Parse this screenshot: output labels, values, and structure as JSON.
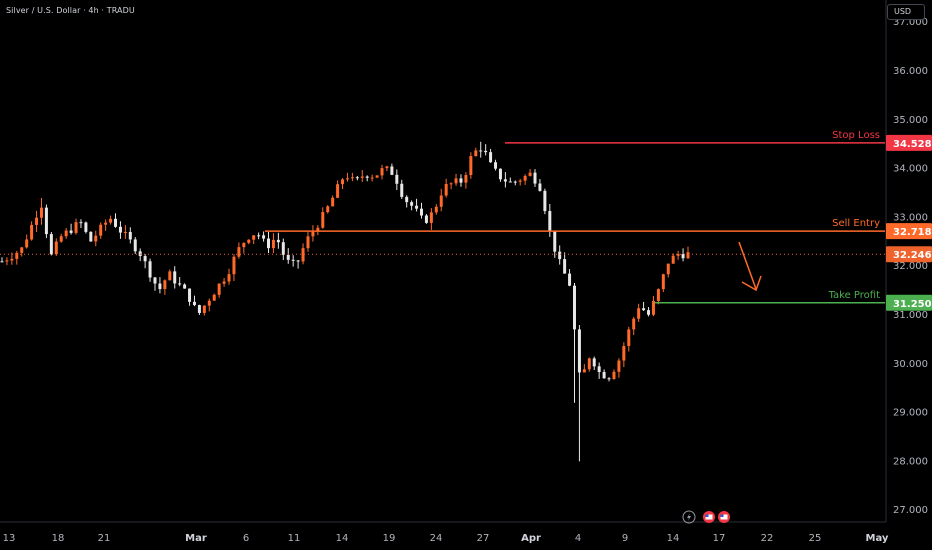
{
  "header": {
    "symbol_title": "Silver / U.S. Dollar · 4h · TRADU",
    "currency": "USD"
  },
  "chart_data": {
    "type": "candlestick",
    "title": "Silver / U.S. Dollar · 4h · TRADU",
    "ylim": [
      26.6,
      37.1
    ],
    "y_ticks": [
      "27.000",
      "28.000",
      "29.000",
      "30.000",
      "31.000",
      "32.000",
      "33.000",
      "34.000",
      "35.000",
      "36.000",
      "37.000"
    ],
    "x_ticks": [
      "13",
      "18",
      "21",
      "Mar",
      "6",
      "11",
      "14",
      "19",
      "24",
      "27",
      "Apr",
      "4",
      "9",
      "14",
      "17",
      "22",
      "25",
      "May"
    ],
    "grid": false,
    "levels": [
      {
        "label": "Stop Loss",
        "value": 34.528,
        "price_label": "34.528",
        "color": "#f23645"
      },
      {
        "label": "Sell Entry",
        "value": 32.718,
        "price_label": "32.718",
        "color": "#ff6a2a"
      },
      {
        "label": "Take Profit",
        "value": 31.25,
        "price_label": "31.250",
        "color": "#4caf50"
      }
    ],
    "last_price": {
      "value": 32.246,
      "label": "32.246",
      "color": "#f0622c"
    },
    "price_path": [
      {
        "x": 0,
        "y": 32.1
      },
      {
        "x": 2,
        "y": 32.35
      },
      {
        "x": 4,
        "y": 33.3
      },
      {
        "x": 5,
        "y": 32.2
      },
      {
        "x": 6,
        "y": 32.6
      },
      {
        "x": 8,
        "y": 32.9
      },
      {
        "x": 9,
        "y": 32.5
      },
      {
        "x": 11,
        "y": 33.0
      },
      {
        "x": 12,
        "y": 32.75
      },
      {
        "x": 14,
        "y": 32.3
      },
      {
        "x": 16,
        "y": 31.5
      },
      {
        "x": 17,
        "y": 31.85
      },
      {
        "x": 19,
        "y": 31.4
      },
      {
        "x": 20,
        "y": 31.0
      },
      {
        "x": 21,
        "y": 31.3
      },
      {
        "x": 23,
        "y": 31.85
      },
      {
        "x": 24,
        "y": 32.3
      },
      {
        "x": 25,
        "y": 32.6
      },
      {
        "x": 26,
        "y": 32.7
      },
      {
        "x": 27,
        "y": 32.4
      },
      {
        "x": 28,
        "y": 32.6
      },
      {
        "x": 29,
        "y": 32.1
      },
      {
        "x": 30,
        "y": 32.0
      },
      {
        "x": 31,
        "y": 32.5
      },
      {
        "x": 32,
        "y": 32.8
      },
      {
        "x": 33,
        "y": 33.1
      },
      {
        "x": 34,
        "y": 33.5
      },
      {
        "x": 35,
        "y": 33.9
      },
      {
        "x": 36,
        "y": 33.7
      },
      {
        "x": 37,
        "y": 33.9
      },
      {
        "x": 38,
        "y": 33.85
      },
      {
        "x": 39,
        "y": 34.0
      },
      {
        "x": 40,
        "y": 33.9
      },
      {
        "x": 41,
        "y": 33.4
      },
      {
        "x": 42,
        "y": 33.2
      },
      {
        "x": 43,
        "y": 32.9
      },
      {
        "x": 44,
        "y": 33.1
      },
      {
        "x": 45,
        "y": 33.6
      },
      {
        "x": 46,
        "y": 33.7
      },
      {
        "x": 47,
        "y": 33.75
      },
      {
        "x": 48,
        "y": 34.3
      },
      {
        "x": 49,
        "y": 34.45
      },
      {
        "x": 50,
        "y": 34.0
      },
      {
        "x": 51,
        "y": 33.8
      },
      {
        "x": 52,
        "y": 33.7
      },
      {
        "x": 53,
        "y": 33.8
      },
      {
        "x": 54,
        "y": 33.9
      },
      {
        "x": 55,
        "y": 33.6
      },
      {
        "x": 56,
        "y": 32.6
      },
      {
        "x": 57,
        "y": 32.0
      },
      {
        "x": 58,
        "y": 31.6
      },
      {
        "x": 58.5,
        "y": 30.5
      },
      {
        "x": 59,
        "y": 29.6
      },
      {
        "x": 60,
        "y": 30.2
      },
      {
        "x": 61,
        "y": 29.8
      },
      {
        "x": 62,
        "y": 29.75
      },
      {
        "x": 63,
        "y": 30.1
      },
      {
        "x": 64,
        "y": 30.7
      },
      {
        "x": 65,
        "y": 31.2
      },
      {
        "x": 66,
        "y": 31.0
      },
      {
        "x": 67,
        "y": 31.5
      },
      {
        "x": 68,
        "y": 32.1
      },
      {
        "x": 69,
        "y": 32.25
      },
      {
        "x": 70,
        "y": 32.25
      }
    ],
    "candle_count": 140,
    "projection": "arrow pointing down toward Take Profit"
  },
  "toolbar": {
    "icons": [
      "lightning-icon",
      "flag-icon",
      "flag-icon"
    ]
  },
  "colors": {
    "background": "#000000",
    "up_candle": "#ff6a2a",
    "down_candle": "#e8e8e8",
    "axis_text": "#b2b5be",
    "axis_line": "#2a2e39"
  }
}
